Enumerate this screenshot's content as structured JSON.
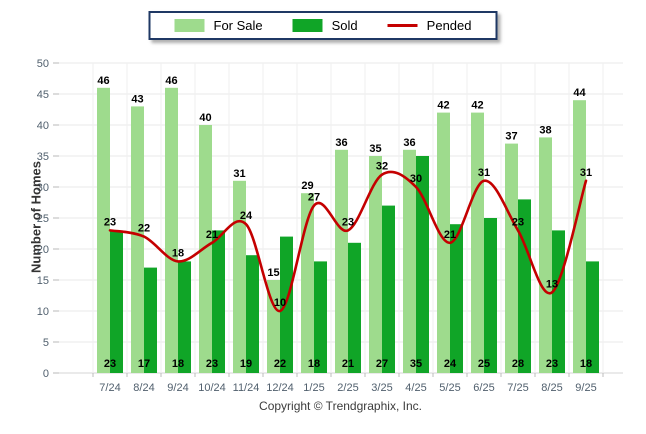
{
  "footer": {
    "text": "Copyright © Trendgraphix, Inc."
  },
  "chart_data": {
    "type": "bar",
    "categories": [
      "7/24",
      "8/24",
      "9/24",
      "10/24",
      "11/24",
      "12/24",
      "1/25",
      "2/25",
      "3/25",
      "4/25",
      "5/25",
      "6/25",
      "7/25",
      "8/25",
      "9/25"
    ],
    "series": [
      {
        "name": "For Sale",
        "type": "bar",
        "color": "#9EDB8D",
        "values": [
          46,
          43,
          46,
          40,
          31,
          15,
          29,
          36,
          35,
          36,
          42,
          42,
          37,
          38,
          44
        ]
      },
      {
        "name": "Sold",
        "type": "bar",
        "color": "#10A527",
        "values": [
          23,
          17,
          18,
          23,
          19,
          22,
          18,
          21,
          27,
          35,
          24,
          25,
          28,
          23,
          18
        ]
      },
      {
        "name": "Pended",
        "type": "line",
        "color": "#C40000",
        "values": [
          23,
          22,
          18,
          21,
          24,
          10,
          27,
          23,
          32,
          30,
          21,
          31,
          23,
          13,
          31
        ]
      }
    ],
    "xlabel": "",
    "ylabel": "Number of Homes",
    "ylim": [
      0,
      50
    ],
    "ytick_step": 5,
    "grid": true,
    "legend_position": "top-center",
    "colors": {
      "grid_line": "#e9e9e9",
      "axis_line": "#d4d4d4",
      "tick_text": "#51606e",
      "legend_border": "#1f3864",
      "data_label": "#000000"
    }
  }
}
